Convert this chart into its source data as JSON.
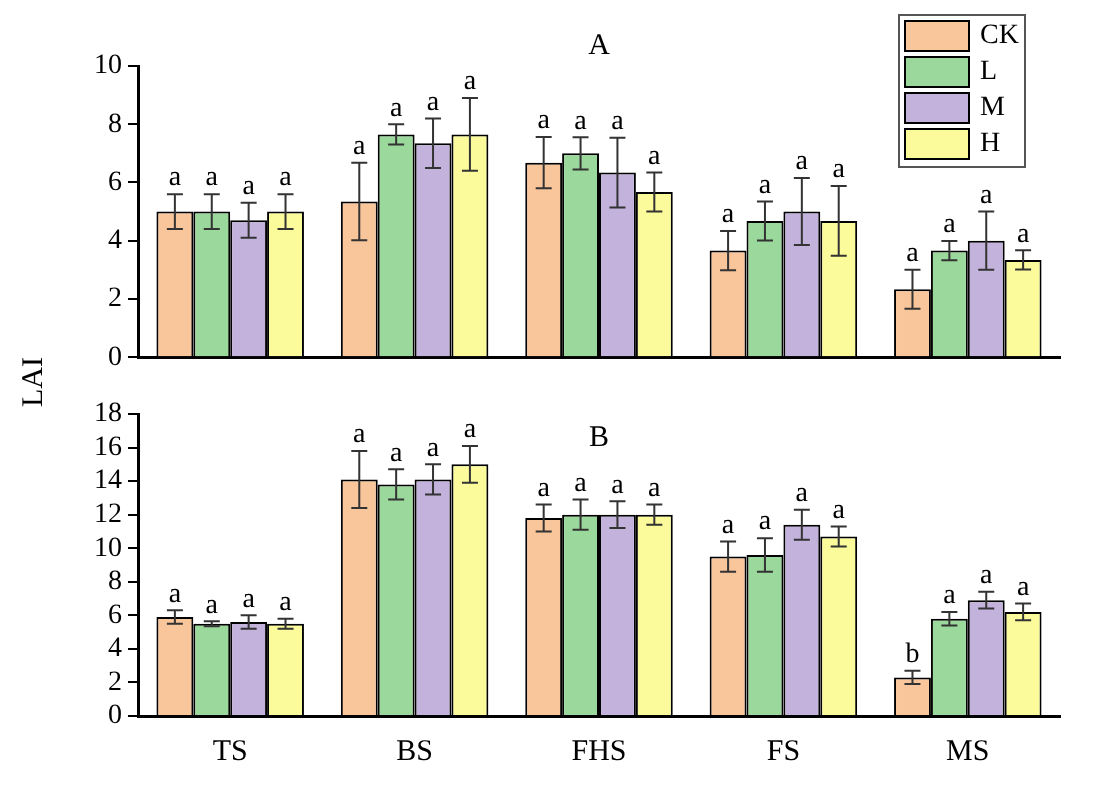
{
  "chart_data": [
    {
      "type": "bar",
      "title": "A",
      "ylabel": "LAI",
      "categories": [
        null,
        null,
        null,
        null,
        null
      ],
      "ylim": [
        0,
        10
      ],
      "yticks": [
        0,
        2,
        4,
        6,
        8,
        10
      ],
      "grid": false,
      "legend": "top right",
      "tick_labels": "y",
      "series": [
        {
          "name": "CK",
          "color": "#f9c59b",
          "values": [
            5.0,
            5.35,
            6.68,
            3.66,
            2.33
          ],
          "errors": [
            0.6,
            1.33,
            0.88,
            0.67,
            0.67
          ],
          "value_labels": [
            "a",
            "a",
            "a",
            "a",
            "a"
          ]
        },
        {
          "name": "L",
          "color": "#9bd89b",
          "values": [
            5.0,
            7.65,
            7.0,
            4.68,
            3.66
          ],
          "errors": [
            0.6,
            0.35,
            0.55,
            0.67,
            0.33
          ],
          "value_labels": [
            "a",
            "a",
            "a",
            "a",
            "a"
          ]
        },
        {
          "name": "M",
          "color": "#c3b3dc",
          "values": [
            4.7,
            7.35,
            6.34,
            5.0,
            4.0
          ],
          "errors": [
            0.6,
            0.85,
            1.2,
            1.15,
            1.0
          ],
          "value_labels": [
            "a",
            "a",
            "a",
            "a",
            "a"
          ]
        },
        {
          "name": "H",
          "color": "#fbfb9b",
          "values": [
            5.0,
            7.65,
            5.67,
            4.68,
            3.34
          ],
          "errors": [
            0.6,
            1.25,
            0.67,
            1.2,
            0.33
          ],
          "value_labels": [
            "a",
            "a",
            "a",
            "a",
            "a"
          ]
        }
      ]
    },
    {
      "type": "bar",
      "title": "B",
      "categories": [
        "TS",
        "BS",
        "FHS",
        "FS",
        "MS"
      ],
      "ylim": [
        0,
        18
      ],
      "yticks": [
        0,
        2,
        4,
        6,
        8,
        10,
        12,
        14,
        16,
        18
      ],
      "grid": false,
      "series": [
        {
          "color": "#f9c59b",
          "values": [
            5.9,
            14.1,
            11.8,
            9.5,
            2.3
          ],
          "errors": [
            0.4,
            1.7,
            0.8,
            0.9,
            0.4
          ],
          "value_labels": [
            "a",
            "a",
            "a",
            "a",
            "b"
          ]
        },
        {
          "color": "#9bd89b",
          "values": [
            5.5,
            13.8,
            12.0,
            9.6,
            5.8
          ],
          "errors": [
            0.15,
            0.9,
            0.9,
            1.0,
            0.4
          ],
          "value_labels": [
            "a",
            "a",
            "a",
            "a",
            "a"
          ]
        },
        {
          "color": "#c3b3dc",
          "values": [
            5.6,
            14.1,
            12.0,
            11.4,
            6.9
          ],
          "errors": [
            0.4,
            0.9,
            0.8,
            0.9,
            0.5
          ],
          "value_labels": [
            "a",
            "a",
            "a",
            "a",
            "a"
          ]
        },
        {
          "color": "#fbfb9b",
          "values": [
            5.5,
            15.0,
            12.0,
            10.7,
            6.2
          ],
          "errors": [
            0.3,
            1.1,
            0.6,
            0.6,
            0.5
          ],
          "value_labels": [
            "a",
            "a",
            "a",
            "a",
            "a"
          ]
        }
      ]
    }
  ]
}
